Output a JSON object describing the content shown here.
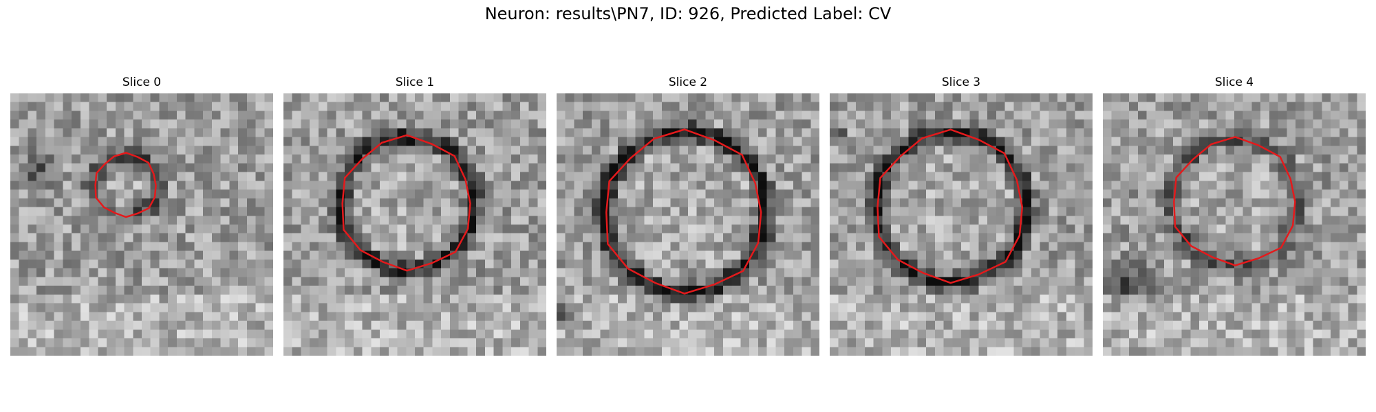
{
  "figure": {
    "title": "Neuron: results\\PN7, ID: 926, Predicted Label: CV",
    "contour_color": "#e41a1c",
    "colormap": "gray"
  },
  "slices": [
    {
      "title": "Slice 0",
      "center": [
        13.2,
        10.5
      ],
      "radius": 3.6,
      "ring": 0.35,
      "dark_blob": [
        3.5,
        8.5,
        3.0
      ]
    },
    {
      "title": "Slice 1",
      "center": [
        14.1,
        12.6
      ],
      "radius": 7.6,
      "ring": 0.55,
      "dark_blob": null
    },
    {
      "title": "Slice 2",
      "center": [
        14.6,
        13.6
      ],
      "radius": 9.2,
      "ring": 0.6,
      "dark_blob": [
        0.5,
        25.0,
        2.5
      ]
    },
    {
      "title": "Slice 3",
      "center": [
        13.8,
        13.0
      ],
      "radius": 8.6,
      "ring": 0.55,
      "dark_blob": [
        0.5,
        4.5,
        2.0
      ]
    },
    {
      "title": "Slice 4",
      "center": [
        15.1,
        12.4
      ],
      "radius": 7.2,
      "ring": 0.35,
      "dark_blob": [
        3.0,
        21.5,
        4.0
      ]
    }
  ]
}
